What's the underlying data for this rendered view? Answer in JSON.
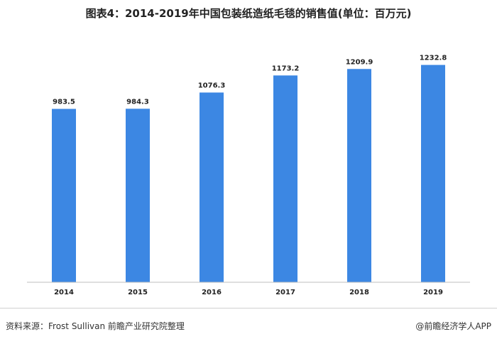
{
  "title": "图表4：2014-2019年中国包装纸造纸毛毯的销售值(单位：百万元)",
  "source": "资料来源：Frost Sullivan 前瞻产业研究院整理",
  "credit": "@前瞻经济学人APP",
  "colors": {
    "bar": "#3c87e3",
    "axis": "#bfbfbf",
    "text": "#222222"
  },
  "chart_data": {
    "type": "bar",
    "title": "图表4：2014-2019年中国包装纸造纸毛毯的销售值(单位：百万元)",
    "categories": [
      "2014",
      "2015",
      "2016",
      "2017",
      "2018",
      "2019"
    ],
    "values": [
      983.5,
      984.3,
      1076.3,
      1173.2,
      1209.9,
      1232.8
    ],
    "ylim": [
      0,
      1400
    ],
    "grid": false,
    "legend": "none",
    "xlabel": "",
    "ylabel": ""
  }
}
